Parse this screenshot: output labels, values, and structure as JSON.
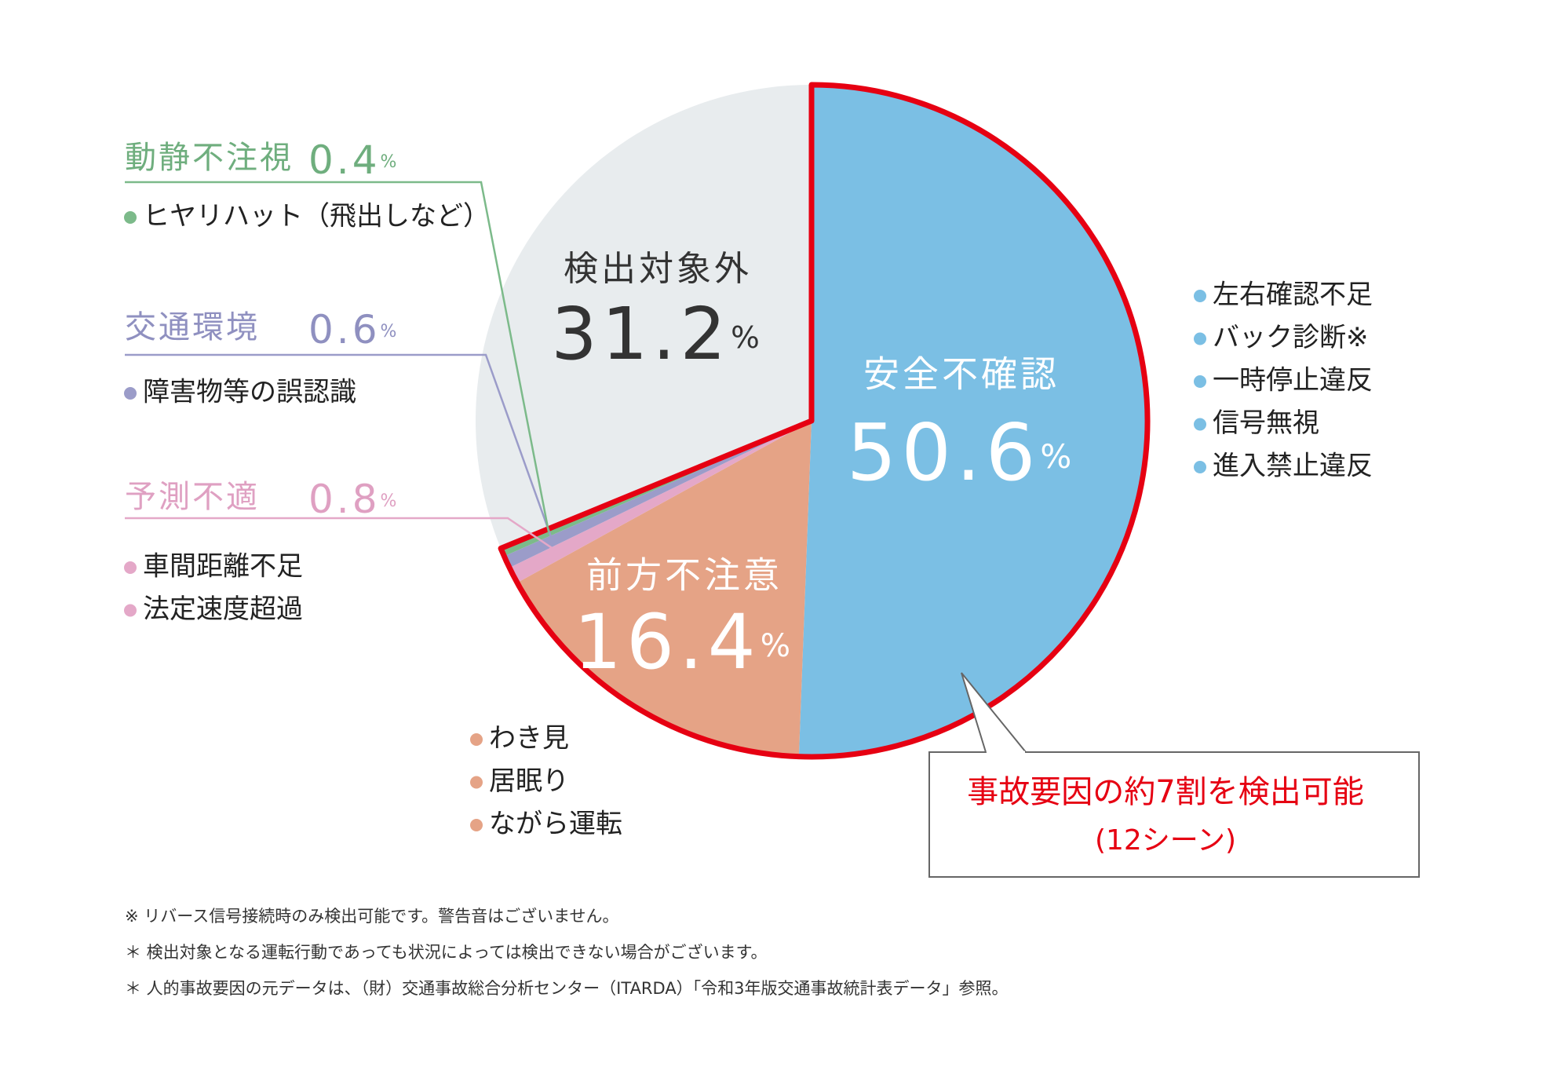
{
  "chart_data": {
    "type": "pie",
    "unit": "%",
    "outline_color": "#e60012",
    "slices": [
      {
        "name": "安全不確認",
        "value": 50.6,
        "color": "#7bbfe4",
        "outlined": true,
        "items": [
          "左右確認不足",
          "バック診断※",
          "一時停止違反",
          "信号無視",
          "進入禁止違反"
        ]
      },
      {
        "name": "前方不注意",
        "value": 16.4,
        "color": "#e5a386",
        "outlined": true,
        "items": [
          "わき見",
          "居眠り",
          "ながら運転"
        ]
      },
      {
        "name": "予測不適",
        "value": 0.8,
        "color": "#e4a8c8",
        "outlined": true,
        "items": [
          "車間距離不足",
          "法定速度超過"
        ]
      },
      {
        "name": "交通環境",
        "value": 0.6,
        "color": "#9b9cc9",
        "outlined": true,
        "items": [
          "障害物等の誤認識"
        ]
      },
      {
        "name": "動静不注視",
        "value": 0.4,
        "color": "#7cba8a",
        "outlined": true,
        "items": [
          "ヒヤリハット（飛出しなど）"
        ]
      },
      {
        "name": "検出対象外",
        "value": 31.2,
        "color": "#e8ecee",
        "outlined": false,
        "items": []
      }
    ],
    "callout": [
      "事故要因の約7割を検出可能",
      "(12シーン)"
    ],
    "notes": [
      "※ リバース信号接続時のみ検出可能です。警告音はございません。",
      "＊ 検出対象となる運転行動であっても状況によっては検出できない場合がございます。",
      "＊ 人的事故要因の元データは、（財）交通事故総合分析センター（ITARDA）「令和3年版交通事故統計表データ」参照。"
    ]
  }
}
